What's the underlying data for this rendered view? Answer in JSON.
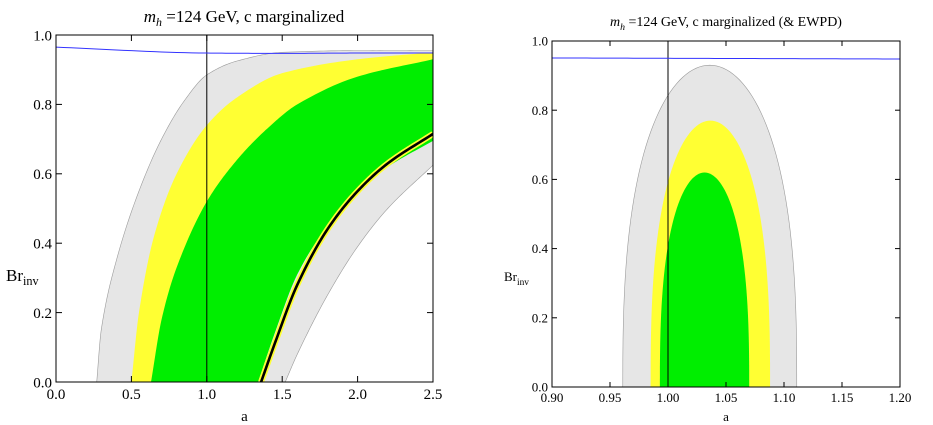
{
  "chart_data": [
    {
      "type": "area",
      "title_var": "m",
      "title_sub": "h",
      "title_rest": " =124 GeV, c marginalized",
      "xlabel": "a",
      "ylabel_main": "Br",
      "ylabel_sub": "inv",
      "xlim": [
        0.0,
        2.5
      ],
      "ylim": [
        0.0,
        1.0
      ],
      "x_ticks": [
        "0.0",
        "0.5",
        "1.0",
        "1.5",
        "2.0",
        "2.5"
      ],
      "y_ticks": [
        "0.0",
        "0.2",
        "0.4",
        "0.6",
        "0.8",
        "1.0"
      ],
      "reference_lines": [
        {
          "type": "vertical",
          "x": 1.0,
          "color": "#000000"
        },
        {
          "type": "curve",
          "color": "#3333ff",
          "x": [
            0.0,
            1.0,
            1.5,
            2.0,
            2.5
          ],
          "y": [
            0.965,
            0.948,
            0.947,
            0.948,
            0.948
          ]
        }
      ],
      "series": [
        {
          "color": "#e6e6e6",
          "left_edge": {
            "x": [
              0.27,
              0.3,
              0.4,
              0.55,
              0.7,
              0.85,
              1.0,
              1.2,
              1.5,
              2.0,
              2.5
            ],
            "y": [
              0.0,
              0.15,
              0.35,
              0.55,
              0.7,
              0.81,
              0.885,
              0.925,
              0.95,
              0.955,
              0.955
            ]
          },
          "right_edge": {
            "x": [
              1.52,
              1.6,
              1.8,
              2.0,
              2.2,
              2.5
            ],
            "y": [
              0.0,
              0.08,
              0.25,
              0.39,
              0.5,
              0.625
            ]
          }
        },
        {
          "color": "#ffff33",
          "left_edge": {
            "x": [
              0.5,
              0.55,
              0.65,
              0.8,
              1.0,
              1.2,
              1.5,
              2.0,
              2.5
            ],
            "y": [
              0.0,
              0.2,
              0.42,
              0.6,
              0.74,
              0.82,
              0.89,
              0.93,
              0.95
            ]
          },
          "right_edge": {
            "x": [
              1.3,
              1.4,
              1.6,
              1.8,
              2.0,
              2.2,
              2.5
            ],
            "y": [
              0.0,
              0.13,
              0.34,
              0.48,
              0.57,
              0.64,
              0.71
            ]
          }
        },
        {
          "color": "#00ee00",
          "left_edge": {
            "x": [
              0.63,
              0.7,
              0.8,
              1.0,
              1.2,
              1.4,
              1.6,
              2.0,
              2.5
            ],
            "y": [
              0.0,
              0.18,
              0.33,
              0.52,
              0.64,
              0.73,
              0.8,
              0.88,
              0.93
            ]
          },
          "right_edge": {
            "x": [
              1.34,
              1.45,
              1.6,
              1.8,
              2.0,
              2.2,
              2.5
            ],
            "y": [
              0.0,
              0.14,
              0.31,
              0.45,
              0.55,
              0.62,
              0.695
            ]
          }
        }
      ],
      "best_fit_curve": {
        "color": "#000000",
        "x": [
          1.36,
          1.45,
          1.6,
          1.8,
          2.0,
          2.2,
          2.5
        ],
        "y": [
          0.0,
          0.11,
          0.28,
          0.44,
          0.55,
          0.63,
          0.715
        ]
      }
    },
    {
      "type": "area",
      "title_var": "m",
      "title_sub": "h",
      "title_rest": " =124 GeV, c marginalized (& EWPD)",
      "xlabel": "a",
      "ylabel_main": "Br",
      "ylabel_sub": "inv",
      "xlim": [
        0.9,
        1.2
      ],
      "ylim": [
        0.0,
        1.0
      ],
      "x_ticks": [
        "0.90",
        "0.95",
        "1.00",
        "1.05",
        "1.10",
        "1.15",
        "1.20"
      ],
      "y_ticks": [
        "0.0",
        "0.2",
        "0.4",
        "0.6",
        "0.8",
        "1.0"
      ],
      "reference_lines": [
        {
          "type": "vertical",
          "x": 1.0,
          "color": "#000000"
        },
        {
          "type": "curve",
          "color": "#3333ff",
          "x": [
            0.9,
            1.0,
            1.1,
            1.2
          ],
          "y": [
            0.951,
            0.95,
            0.949,
            0.948
          ]
        }
      ],
      "ellipses": [
        {
          "color": "#e6e6e6",
          "x_left": 0.961,
          "x_right": 1.111,
          "y_top": 0.93
        },
        {
          "color": "#ffff33",
          "x_left": 0.985,
          "x_right": 1.088,
          "y_top": 0.77
        },
        {
          "color": "#00ee00",
          "x_left": 0.993,
          "x_right": 1.07,
          "y_top": 0.62
        }
      ]
    }
  ]
}
